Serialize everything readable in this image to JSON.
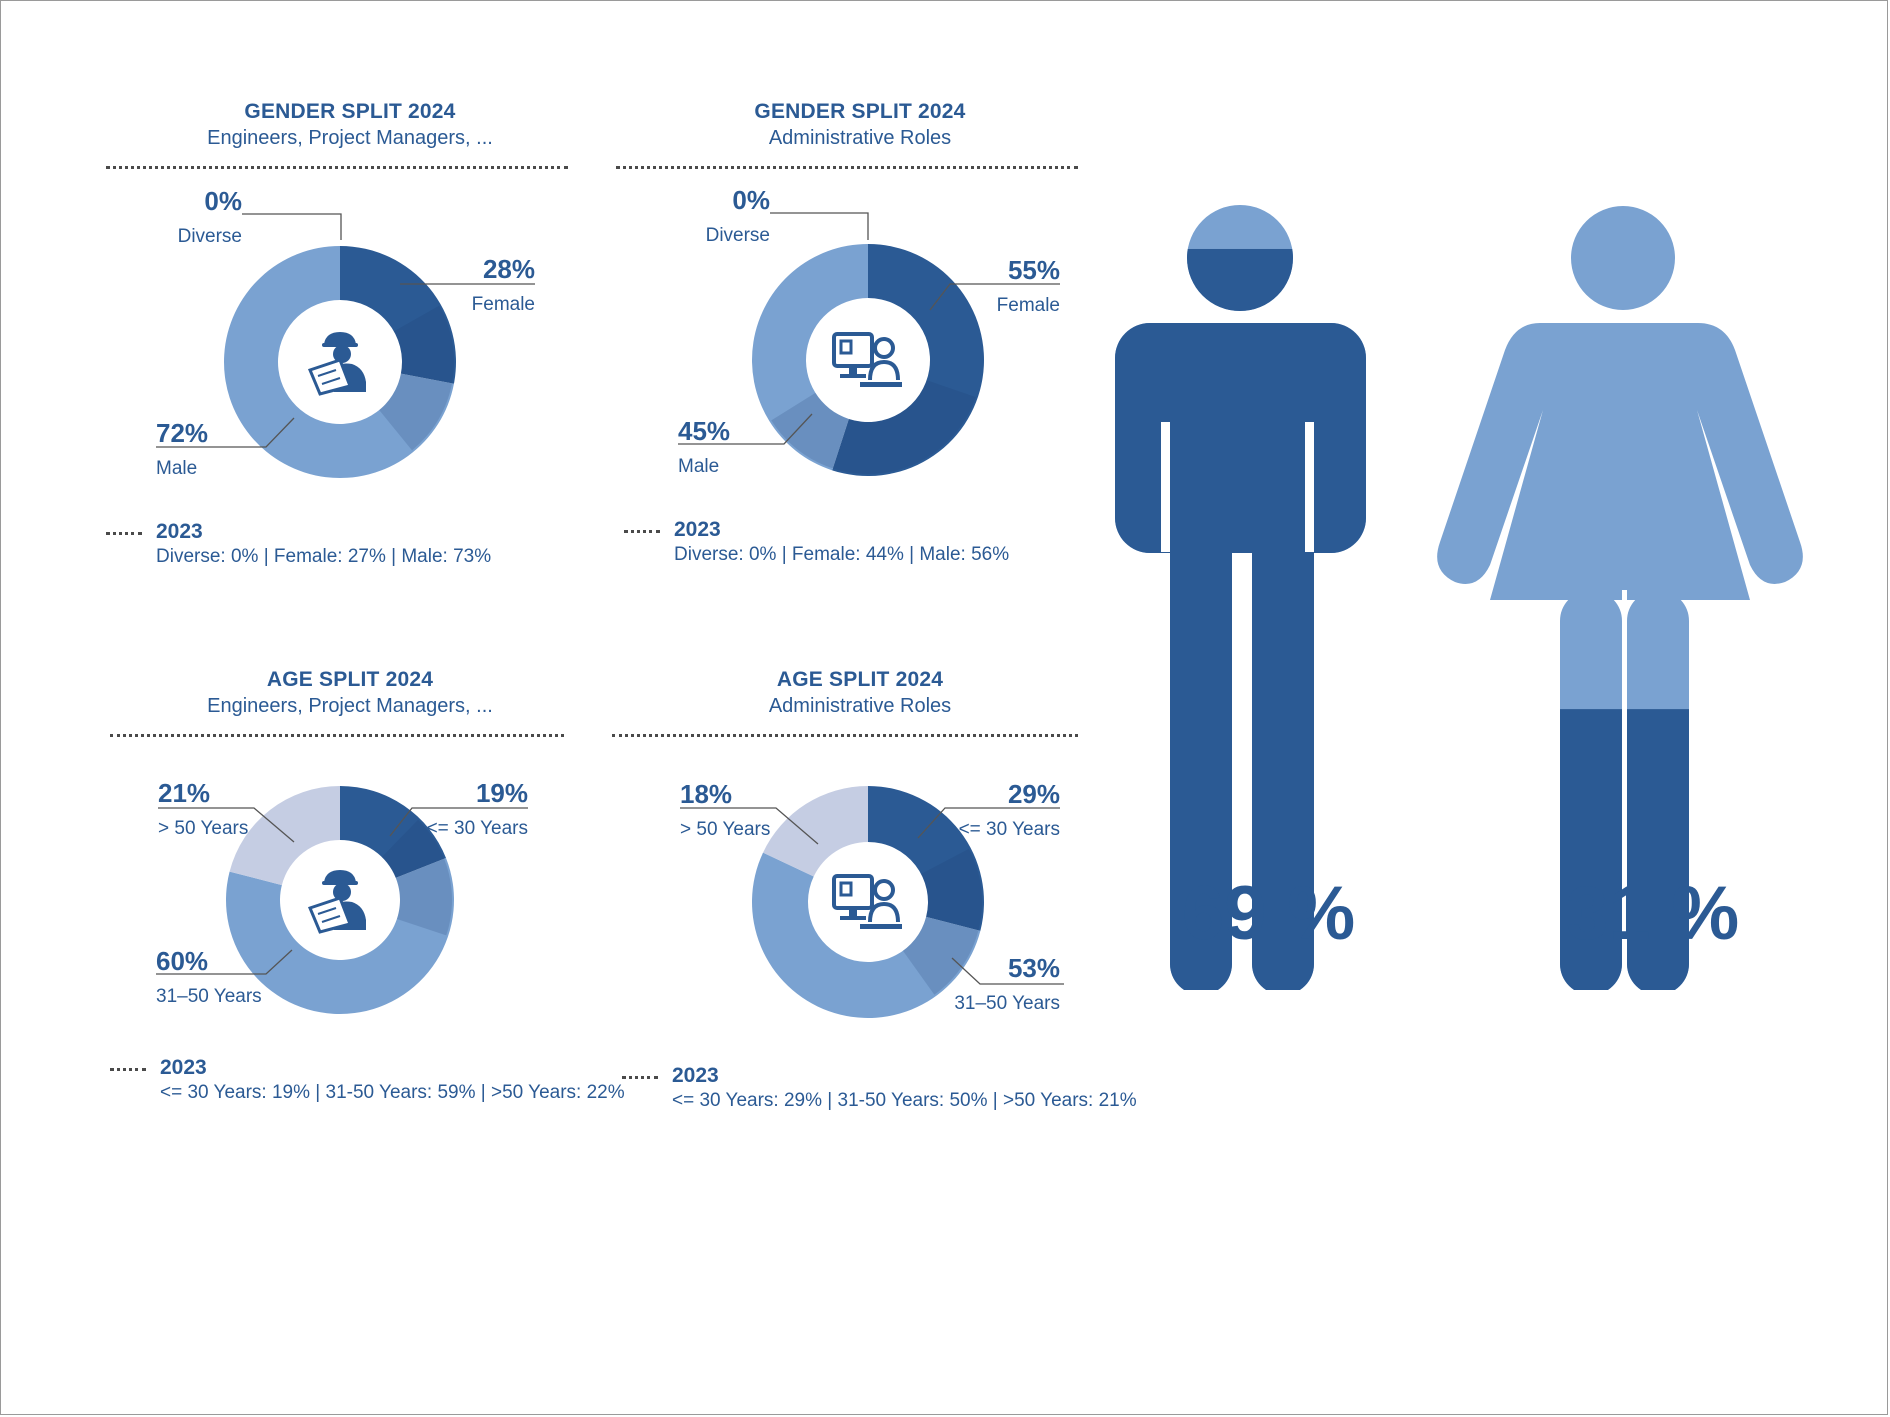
{
  "colors": {
    "dark": "#2b5a94",
    "mid": "#7aa2d1",
    "light": "#c5cde3",
    "text": "#2b5a94"
  },
  "panels": {
    "gender_eng": {
      "title": "GENDER SPLIT 2024",
      "subtitle": "Engineers, Project Managers, ...",
      "icon": "engineer-icon",
      "year": "2023",
      "previous": "Diverse: 0%  |  Female: 27%  |  Male: 73%"
    },
    "gender_admin": {
      "title": "GENDER SPLIT 2024",
      "subtitle": "Administrative Roles",
      "icon": "office-worker-icon",
      "year": "2023",
      "previous": "Diverse: 0%  |  Female: 44%  |  Male: 56%"
    },
    "age_eng": {
      "title": "AGE SPLIT 2024",
      "subtitle": "Engineers, Project Managers, ...",
      "icon": "engineer-icon",
      "year": "2023",
      "previous": "<= 30 Years: 19%  |  31-50 Years: 59% |  >50 Years: 22%"
    },
    "age_admin": {
      "title": "AGE SPLIT 2024",
      "subtitle": "Administrative Roles",
      "icon": "office-worker-icon",
      "year": "2023",
      "previous": "<= 30 Years: 29%  |  31-50 Years: 50% |  >50 Years: 21%"
    }
  },
  "chart_data": [
    {
      "type": "pie",
      "title": "GENDER SPLIT 2024",
      "subtitle": "Engineers, Project Managers, ...",
      "slices": [
        {
          "label": "Female",
          "value": 28,
          "display": "28%",
          "color": "#2b5a94"
        },
        {
          "label": "Male",
          "value": 72,
          "display": "72%",
          "color": "#7aa2d1"
        },
        {
          "label": "Diverse",
          "value": 0,
          "display": "0%",
          "color": "#c5cde3"
        }
      ]
    },
    {
      "type": "pie",
      "title": "GENDER SPLIT 2024",
      "subtitle": "Administrative Roles",
      "slices": [
        {
          "label": "Female",
          "value": 55,
          "display": "55%",
          "color": "#2b5a94"
        },
        {
          "label": "Male",
          "value": 45,
          "display": "45%",
          "color": "#7aa2d1"
        },
        {
          "label": "Diverse",
          "value": 0,
          "display": "0%",
          "color": "#c5cde3"
        }
      ]
    },
    {
      "type": "pie",
      "title": "AGE SPLIT 2024",
      "subtitle": "Engineers, Project Managers, ...",
      "slices": [
        {
          "label": "<= 30 Years",
          "value": 19,
          "display": "19%",
          "color": "#2b5a94"
        },
        {
          "label": "31–50 Years",
          "value": 60,
          "display": "60%",
          "color": "#7aa2d1"
        },
        {
          "label": "> 50 Years",
          "value": 21,
          "display": "21%",
          "color": "#c5cde3"
        }
      ]
    },
    {
      "type": "pie",
      "title": "AGE SPLIT 2024",
      "subtitle": "Administrative Roles",
      "slices": [
        {
          "label": "<= 30 Years",
          "value": 29,
          "display": "29%",
          "color": "#2b5a94"
        },
        {
          "label": "31–50 Years",
          "value": 53,
          "display": "53%",
          "color": "#7aa2d1"
        },
        {
          "label": "> 50 Years",
          "value": 18,
          "display": "18%",
          "color": "#c5cde3"
        }
      ]
    },
    {
      "type": "bar",
      "title": "",
      "categories": [
        "Male",
        "Female"
      ],
      "values": [
        69,
        31
      ],
      "display": [
        "69 %",
        "31 %"
      ],
      "icons": [
        "male-figure-icon",
        "female-figure-icon"
      ],
      "ylim": [
        0,
        100
      ]
    }
  ]
}
